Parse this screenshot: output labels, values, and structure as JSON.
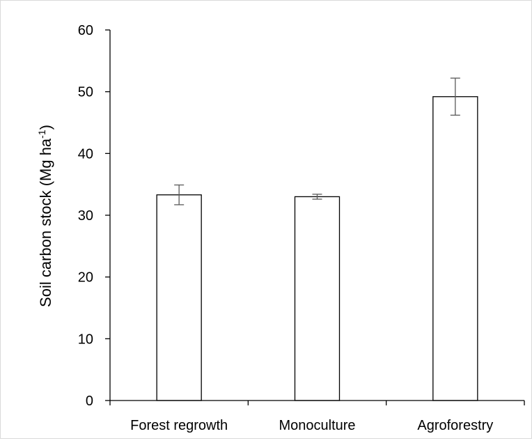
{
  "chart_data": {
    "type": "bar",
    "categories": [
      "Forest regrowth",
      "Monoculture",
      "Agroforestry"
    ],
    "values": [
      33.3,
      33.0,
      49.2
    ],
    "error": [
      1.6,
      0.4,
      3.0
    ],
    "title": "",
    "xlabel": "",
    "ylabel": "Soil carbon stock (Mg ha",
    "ylabel_superscript": "-1",
    "ylabel_suffix": ")",
    "ylim": [
      0,
      60
    ],
    "yticks": [
      "0",
      "10",
      "20",
      "30",
      "40",
      "50",
      "60"
    ],
    "grid": false,
    "legend": "none",
    "colors": {
      "bar_fill": "#ffffff",
      "bar_stroke": "#000000",
      "axis": "#000000",
      "error_bar": "#595959",
      "frame": "#d9d9d9"
    }
  }
}
